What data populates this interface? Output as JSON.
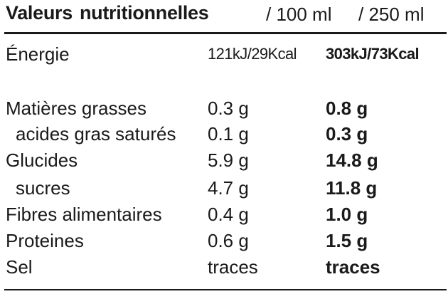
{
  "header": {
    "title_word1": "Valeurs",
    "title_word2": "nutritionnelles",
    "col1": "/ 100 ml",
    "col2": "/ 250 ml"
  },
  "rows": [
    {
      "label": "Énergie",
      "per100": "121kJ/29Kcal",
      "per250": "303kJ/73Kcal"
    },
    {
      "label": "Matières grasses",
      "per100": "0.3 g",
      "per250": "0.8 g"
    },
    {
      "label": "acides gras saturés",
      "per100": "0.1 g",
      "per250": "0.3 g"
    },
    {
      "label": "Glucides",
      "per100": "5.9 g",
      "per250": "14.8 g"
    },
    {
      "label": "sucres",
      "per100": "4.7 g",
      "per250": "11.8 g"
    },
    {
      "label": "Fibres alimentaires",
      "per100": "0.4 g",
      "per250": "1.0 g"
    },
    {
      "label": "Proteines",
      "per100": "0.6 g",
      "per250": "1.5 g"
    },
    {
      "label": "Sel",
      "per100": "traces",
      "per250": "traces"
    }
  ]
}
